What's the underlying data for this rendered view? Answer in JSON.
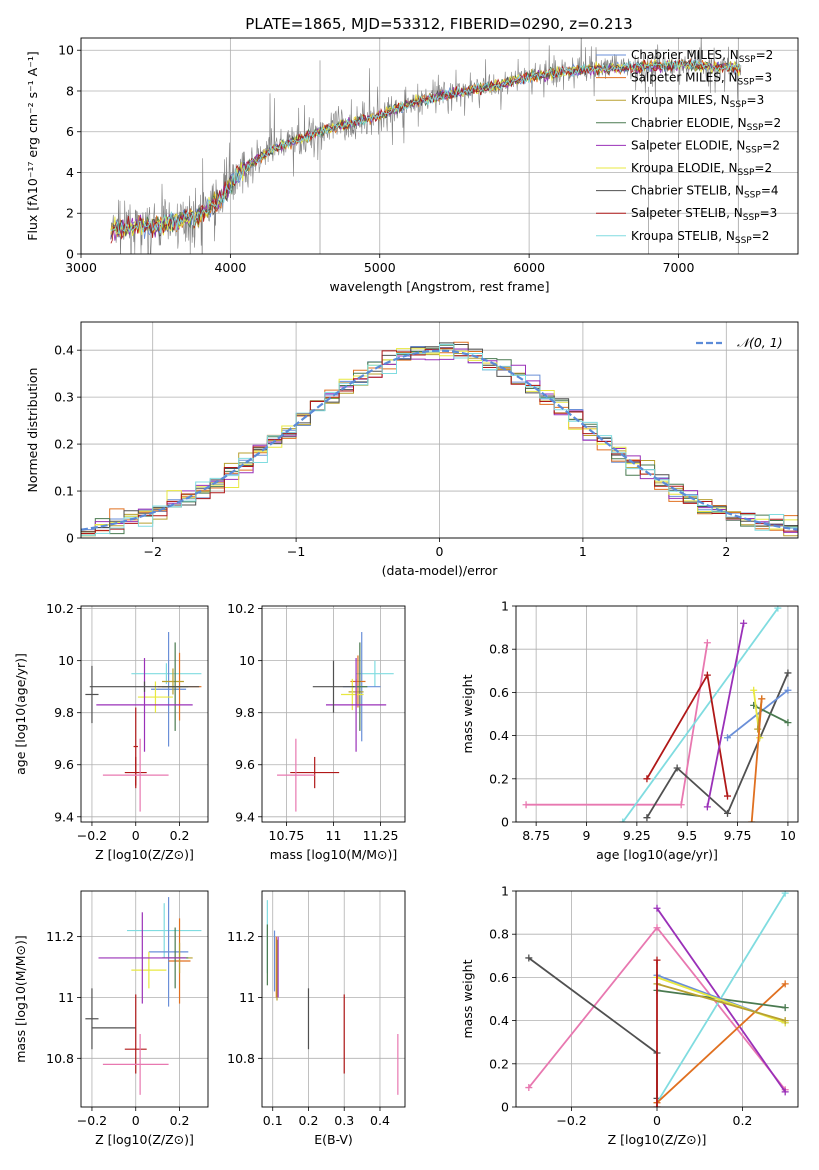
{
  "figure": {
    "title": "PLATE=1865, MJD=53312, FIBERID=0290, z=0.213"
  },
  "colors": {
    "Chabrier MILES": "#6a8fd8",
    "Salpeter MILES": "#e07020",
    "Kroupa MILES": "#b8a030",
    "Chabrier ELODIE": "#4a7a50",
    "Salpeter ELODIE": "#9a30b8",
    "Kroupa ELODIE": "#e8e840",
    "Chabrier STELIB": "#505050",
    "Salpeter STELIB": "#b01818",
    "Kroupa STELIB": "#80dce0",
    "pink": "#e878b0",
    "data": "#808080",
    "normal": "#5b8bd8"
  },
  "chart_data": [
    {
      "id": "spectrum",
      "type": "line",
      "xlabel": "wavelength [Angstrom, rest frame]",
      "ylabel": "Flux [f_λ 10^-17 erg cm^-2 s^-1 A^-1]",
      "xlim": [
        3000,
        7800
      ],
      "ylim": [
        0,
        10.6
      ],
      "xticks": [
        3000,
        4000,
        5000,
        6000,
        7000
      ],
      "yticks": [
        0,
        2,
        4,
        6,
        8,
        10
      ],
      "continuum_x": [
        3200,
        3500,
        3800,
        3950,
        4050,
        4300,
        4600,
        4800,
        5000,
        5200,
        5500,
        5800,
        6000,
        6300,
        6500,
        6800,
        7000,
        7200,
        7400
      ],
      "continuum_y": [
        1.2,
        1.4,
        1.9,
        2.8,
        4.0,
        5.2,
        6.0,
        6.4,
        6.8,
        7.4,
        7.9,
        8.3,
        8.7,
        9.0,
        9.1,
        9.2,
        9.3,
        9.2,
        9.1
      ],
      "legend_position": "upper right",
      "legend": [
        {
          "label": "Chabrier MILES, N",
          "sub": "SSP",
          "suffix": "=2",
          "color": "Chabrier MILES"
        },
        {
          "label": "Salpeter MILES, N",
          "sub": "SSP",
          "suffix": "=3",
          "color": "Salpeter MILES"
        },
        {
          "label": "Kroupa MILES, N",
          "sub": "SSP",
          "suffix": "=3",
          "color": "Kroupa MILES"
        },
        {
          "label": "Chabrier ELODIE, N",
          "sub": "SSP",
          "suffix": "=2",
          "color": "Chabrier ELODIE"
        },
        {
          "label": "Salpeter ELODIE, N",
          "sub": "SSP",
          "suffix": "=2",
          "color": "Salpeter ELODIE"
        },
        {
          "label": "Kroupa ELODIE, N",
          "sub": "SSP",
          "suffix": "=2",
          "color": "Kroupa ELODIE"
        },
        {
          "label": "Chabrier STELIB, N",
          "sub": "SSP",
          "suffix": "=4",
          "color": "Chabrier STELIB"
        },
        {
          "label": "Salpeter STELIB, N",
          "sub": "SSP",
          "suffix": "=3",
          "color": "Salpeter STELIB"
        },
        {
          "label": "Kroupa STELIB, N",
          "sub": "SSP",
          "suffix": "=2",
          "color": "Kroupa STELIB"
        }
      ]
    },
    {
      "id": "residuals",
      "type": "histogram",
      "xlabel": "(data-model)/error",
      "ylabel": "Normed distribution",
      "xlim": [
        -2.5,
        2.5
      ],
      "ylim": [
        0,
        0.46
      ],
      "xticks": [
        -2,
        -1,
        0,
        1,
        2
      ],
      "yticks": [
        0.0,
        0.1,
        0.2,
        0.3,
        0.4
      ],
      "legend": {
        "label": "𝒩(0, 1)",
        "position": "upper right"
      }
    },
    {
      "id": "age-vs-Z",
      "type": "errorbar",
      "xlabel": "Z [log10(Z/Z⊙)]",
      "ylabel": "age [log10(age/yr)]",
      "xlim": [
        -0.25,
        0.33
      ],
      "ylim": [
        9.38,
        10.21
      ],
      "xticks": [
        -0.2,
        0.0,
        0.2
      ],
      "yticks": [
        9.4,
        9.6,
        9.8,
        10.0,
        10.2
      ],
      "points": [
        {
          "color": "Kroupa STELIB",
          "x": 0.14,
          "xerr": 0.16,
          "y": 9.95,
          "yerr": 0.04
        },
        {
          "color": "Chabrier MILES",
          "x": 0.15,
          "xerr": 0.08,
          "y": 9.89,
          "yerr": 0.22
        },
        {
          "color": "Salpeter MILES",
          "x": 0.2,
          "xerr": 0.1,
          "y": 9.9,
          "yerr": 0.13
        },
        {
          "color": "Kroupa MILES",
          "x": 0.17,
          "xerr": 0.05,
          "y": 9.92,
          "yerr": 0.05
        },
        {
          "color": "Chabrier ELODIE",
          "x": 0.18,
          "xerr": 0.06,
          "y": 9.9,
          "yerr": 0.17
        },
        {
          "color": "Kroupa ELODIE",
          "x": 0.09,
          "xerr": 0.08,
          "y": 9.86,
          "yerr": 0.06
        },
        {
          "color": "Salpeter ELODIE",
          "x": 0.04,
          "xerr": 0.22,
          "y": 9.83,
          "yerr": 0.18
        },
        {
          "color": "Chabrier STELIB",
          "x": 0.04,
          "xerr": 0.25,
          "y": 9.9,
          "yerr": 0.02
        },
        {
          "color": "Chabrier STELIB",
          "x": -0.2,
          "xerr": 0.03,
          "y": 9.87,
          "yerr": 0.11
        },
        {
          "color": "Salpeter STELIB",
          "x": 0.0,
          "xerr": 0.05,
          "y": 9.57,
          "yerr": 0.06
        },
        {
          "color": "Salpeter STELIB",
          "x": 0.0,
          "xerr": 0.01,
          "y": 9.67,
          "yerr": 0.15
        },
        {
          "color": "pink",
          "x": 0.0,
          "xerr": 0.15,
          "y": 9.56,
          "yerr": 0.0
        },
        {
          "color": "pink",
          "x": 0.02,
          "xerr": 0.0,
          "y": 9.56,
          "yerr": 0.14
        }
      ]
    },
    {
      "id": "age-vs-mass",
      "type": "errorbar",
      "xlabel": "mass [log10(M/M⊙)]",
      "ylabel": "",
      "xlim": [
        10.62,
        11.38
      ],
      "ylim": [
        9.38,
        10.21
      ],
      "xticks": [
        10.75,
        11.0,
        11.25
      ],
      "yticks": [
        9.4,
        9.6,
        9.8,
        10.0,
        10.2
      ],
      "points": [
        {
          "color": "Kroupa STELIB",
          "x": 11.22,
          "xerr": 0.1,
          "y": 9.95,
          "yerr": 0.05
        },
        {
          "color": "Chabrier MILES",
          "x": 11.15,
          "xerr": 0.1,
          "y": 9.9,
          "yerr": 0.21
        },
        {
          "color": "Salpeter MILES",
          "x": 11.13,
          "xerr": 0.04,
          "y": 9.92,
          "yerr": 0.1
        },
        {
          "color": "Kroupa MILES",
          "x": 11.12,
          "xerr": 0.04,
          "y": 9.88,
          "yerr": 0.05
        },
        {
          "color": "Chabrier ELODIE",
          "x": 11.14,
          "xerr": 0.04,
          "y": 9.9,
          "yerr": 0.17
        },
        {
          "color": "Kroupa ELODIE",
          "x": 11.1,
          "xerr": 0.06,
          "y": 9.87,
          "yerr": 0.06
        },
        {
          "color": "Salpeter ELODIE",
          "x": 11.12,
          "xerr": 0.16,
          "y": 9.83,
          "yerr": 0.18
        },
        {
          "color": "Chabrier STELIB",
          "x": 11.0,
          "xerr": 0.11,
          "y": 9.9,
          "yerr": 0.1
        },
        {
          "color": "Salpeter STELIB",
          "x": 10.9,
          "xerr": 0.13,
          "y": 9.57,
          "yerr": 0.06
        },
        {
          "color": "pink",
          "x": 10.8,
          "xerr": 0.1,
          "y": 9.56,
          "yerr": 0.0
        },
        {
          "color": "pink",
          "x": 10.8,
          "xerr": 0.0,
          "y": 9.56,
          "yerr": 0.14
        }
      ]
    },
    {
      "id": "weight-vs-age",
      "type": "line",
      "xlabel": "age [log10(age/yr)]",
      "ylabel": "mass weight",
      "xlim": [
        8.65,
        10.05
      ],
      "ylim": [
        0,
        1.0
      ],
      "xticks": [
        8.75,
        9.0,
        9.25,
        9.5,
        9.75,
        10.0
      ],
      "yticks": [
        0.0,
        0.2,
        0.4,
        0.6,
        0.8,
        1.0
      ],
      "series": [
        {
          "color": "pink",
          "x": [
            8.7,
            9.47,
            9.6
          ],
          "y": [
            0.08,
            0.08,
            0.83
          ]
        },
        {
          "color": "Kroupa STELIB",
          "x": [
            9.18,
            9.95
          ],
          "y": [
            0.0,
            0.99
          ]
        },
        {
          "color": "Salpeter STELIB",
          "x": [
            9.3,
            9.6,
            9.7
          ],
          "y": [
            0.2,
            0.68,
            0.12
          ]
        },
        {
          "color": "Chabrier STELIB",
          "x": [
            9.3,
            9.45,
            9.7,
            10.0
          ],
          "y": [
            0.02,
            0.25,
            0.04,
            0.69
          ]
        },
        {
          "color": "Salpeter ELODIE",
          "x": [
            9.6,
            9.78
          ],
          "y": [
            0.07,
            0.92
          ]
        },
        {
          "color": "Chabrier MILES",
          "x": [
            9.7,
            10.0
          ],
          "y": [
            0.39,
            0.61
          ]
        },
        {
          "color": "Chabrier ELODIE",
          "x": [
            9.83,
            10.0
          ],
          "y": [
            0.54,
            0.46
          ]
        },
        {
          "color": "Kroupa ELODIE",
          "x": [
            9.83,
            9.86
          ],
          "y": [
            0.61,
            0.39
          ]
        },
        {
          "color": "Kroupa MILES",
          "x": [
            9.85,
            9.87
          ],
          "y": [
            0.43,
            0.57
          ]
        },
        {
          "color": "Salpeter MILES",
          "x": [
            9.82,
            9.87
          ],
          "y": [
            0.0,
            0.57
          ]
        }
      ]
    },
    {
      "id": "mass-vs-Z",
      "type": "errorbar",
      "xlabel": "Z [log10(Z/Z⊙)]",
      "ylabel": "mass [log10(M/M⊙)]",
      "xlim": [
        -0.25,
        0.33
      ],
      "ylim": [
        10.64,
        11.35
      ],
      "xticks": [
        -0.2,
        0.0,
        0.2
      ],
      "yticks": [
        10.8,
        11.0,
        11.2
      ],
      "points": [
        {
          "color": "Kroupa STELIB",
          "x": 0.13,
          "xerr": 0.17,
          "y": 11.22,
          "yerr": 0.09
        },
        {
          "color": "Chabrier MILES",
          "x": 0.15,
          "xerr": 0.09,
          "y": 11.15,
          "yerr": 0.18
        },
        {
          "color": "Salpeter MILES",
          "x": 0.2,
          "xerr": 0.05,
          "y": 11.12,
          "yerr": 0.14
        },
        {
          "color": "Kroupa MILES",
          "x": 0.2,
          "xerr": 0.06,
          "y": 11.13,
          "yerr": 0.05
        },
        {
          "color": "Chabrier ELODIE",
          "x": 0.18,
          "xerr": 0.06,
          "y": 11.13,
          "yerr": 0.1
        },
        {
          "color": "Kroupa ELODIE",
          "x": 0.06,
          "xerr": 0.08,
          "y": 11.09,
          "yerr": 0.06
        },
        {
          "color": "Salpeter ELODIE",
          "x": 0.03,
          "xerr": 0.2,
          "y": 11.13,
          "yerr": 0.15
        },
        {
          "color": "Chabrier STELIB",
          "x": -0.2,
          "xerr": 0.03,
          "y": 10.93,
          "yerr": 0.1
        },
        {
          "color": "Chabrier STELIB",
          "x": -0.1,
          "xerr": 0.1,
          "y": 10.9,
          "yerr": 0.0
        },
        {
          "color": "Salpeter STELIB",
          "x": 0.0,
          "xerr": 0.05,
          "y": 10.83,
          "yerr": 0.0
        },
        {
          "color": "Salpeter STELIB",
          "x": 0.0,
          "xerr": 0.0,
          "y": 10.88,
          "yerr": 0.13
        },
        {
          "color": "pink",
          "x": 0.0,
          "xerr": 0.15,
          "y": 10.78,
          "yerr": 0.0
        },
        {
          "color": "pink",
          "x": 0.02,
          "xerr": 0.0,
          "y": 10.78,
          "yerr": 0.1
        }
      ]
    },
    {
      "id": "mass-vs-ebv",
      "type": "errorbar",
      "xlabel": "E(B-V)",
      "ylabel": "",
      "xlim": [
        0.07,
        0.47
      ],
      "ylim": [
        10.64,
        11.35
      ],
      "xticks": [
        0.1,
        0.2,
        0.3,
        0.4
      ],
      "yticks": [
        10.8,
        11.0,
        11.2
      ],
      "points": [
        {
          "color": "Kroupa STELIB",
          "x": 0.085,
          "xerr": 0.0,
          "y": 11.2,
          "yerr": 0.12
        },
        {
          "color": "Chabrier ELODIE",
          "x": 0.085,
          "xerr": 0.0,
          "y": 11.14,
          "yerr": 0.1
        },
        {
          "color": "Chabrier MILES",
          "x": 0.105,
          "xerr": 0.0,
          "y": 11.12,
          "yerr": 0.1
        },
        {
          "color": "Salpeter MILES",
          "x": 0.11,
          "xerr": 0.0,
          "y": 11.1,
          "yerr": 0.1
        },
        {
          "color": "Kroupa MILES",
          "x": 0.112,
          "xerr": 0.0,
          "y": 11.09,
          "yerr": 0.1
        },
        {
          "color": "Salpeter ELODIE",
          "x": 0.115,
          "xerr": 0.0,
          "y": 11.1,
          "yerr": 0.1
        },
        {
          "color": "Chabrier STELIB",
          "x": 0.2,
          "xerr": 0.0,
          "y": 10.93,
          "yerr": 0.1
        },
        {
          "color": "Salpeter STELIB",
          "x": 0.3,
          "xerr": 0.0,
          "y": 10.88,
          "yerr": 0.13
        },
        {
          "color": "pink",
          "x": 0.45,
          "xerr": 0.0,
          "y": 10.78,
          "yerr": 0.1
        }
      ]
    },
    {
      "id": "weight-vs-Z",
      "type": "line",
      "xlabel": "Z [log10(Z/Z⊙)]",
      "ylabel": "mass weight",
      "xlim": [
        -0.33,
        0.33
      ],
      "ylim": [
        0,
        1.0
      ],
      "xticks": [
        -0.2,
        0.0,
        0.2
      ],
      "yticks": [
        0.0,
        0.2,
        0.4,
        0.6,
        0.8,
        1.0
      ],
      "series": [
        {
          "color": "pink",
          "x": [
            -0.3,
            0.0,
            0.3
          ],
          "y": [
            0.09,
            0.83,
            0.08
          ]
        },
        {
          "color": "Salpeter ELODIE",
          "x": [
            0.0,
            0.3
          ],
          "y": [
            0.92,
            0.07
          ]
        },
        {
          "color": "Chabrier STELIB",
          "x": [
            -0.3,
            0.0,
            0.0
          ],
          "y": [
            0.69,
            0.25,
            0.04
          ]
        },
        {
          "color": "Kroupa STELIB",
          "x": [
            0.0,
            0.3
          ],
          "y": [
            0.02,
            0.99
          ]
        },
        {
          "color": "Salpeter MILES",
          "x": [
            0.0,
            0.3
          ],
          "y": [
            0.02,
            0.57
          ]
        },
        {
          "color": "Chabrier ELODIE",
          "x": [
            0.0,
            0.3
          ],
          "y": [
            0.54,
            0.46
          ]
        },
        {
          "color": "Chabrier MILES",
          "x": [
            0.0,
            0.3
          ],
          "y": [
            0.61,
            0.39
          ]
        },
        {
          "color": "Kroupa ELODIE",
          "x": [
            0.0,
            0.3
          ],
          "y": [
            0.6,
            0.39
          ]
        },
        {
          "color": "Kroupa MILES",
          "x": [
            0.0,
            0.3
          ],
          "y": [
            0.57,
            0.4
          ]
        },
        {
          "color": "Salpeter STELIB",
          "x": [
            0.0,
            0.0
          ],
          "y": [
            0.0,
            0.68
          ]
        }
      ]
    }
  ]
}
